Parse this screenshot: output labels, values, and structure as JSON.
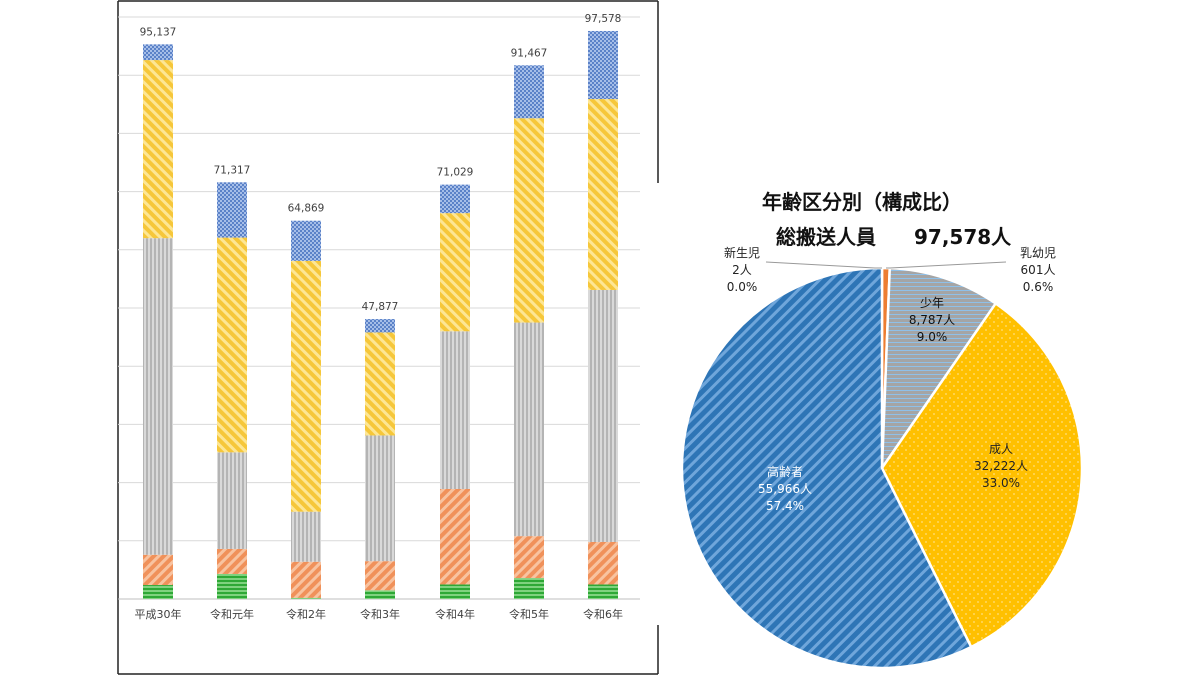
{
  "chart_data": [
    {
      "type": "bar",
      "stacked": true,
      "categories": [
        "平成30年",
        "令和元年",
        "令和2年",
        "令和3年",
        "令和4年",
        "令和5年",
        "令和6年"
      ],
      "totals": [
        "95,137",
        "71,317",
        "64,869",
        "47,877",
        "71,029",
        "91,467",
        "97,578"
      ],
      "series": [
        {
          "key": "s1",
          "color": "#2EA836",
          "pattern": "horizontal-lines",
          "values": [
            2400,
            4300,
            200,
            1500,
            2500,
            3600,
            2500
          ]
        },
        {
          "key": "s2",
          "color": "#F0915A",
          "pattern": "diagonal-hatch",
          "values": [
            5200,
            4300,
            6200,
            5000,
            16400,
            7200,
            7300
          ]
        },
        {
          "key": "s3",
          "color": "#B4B4B4",
          "pattern": "vertical-lines",
          "values": [
            54400,
            16600,
            8600,
            21600,
            27100,
            36700,
            43300
          ]
        },
        {
          "key": "s4",
          "color": "#F6C73A",
          "pattern": "diagonal-hatch",
          "values": [
            30600,
            36900,
            43100,
            17700,
            20300,
            35100,
            32800
          ]
        },
        {
          "key": "s5",
          "color": "#6F93D2",
          "pattern": "grid",
          "values": [
            2700,
            9500,
            6900,
            2300,
            4900,
            9100,
            11700
          ]
        }
      ],
      "ylim": [
        0,
        100000
      ],
      "gridlines": true
    },
    {
      "type": "pie",
      "title": "年齢区分別（構成比）",
      "subtitle_label": "総搬送人員",
      "subtitle_value": "97,578人",
      "slices": [
        {
          "key": "newborn",
          "name": "新生児",
          "value": 2,
          "value_text": "2人",
          "pct": "0.0%",
          "color": "#A5A5A5"
        },
        {
          "key": "infant",
          "name": "乳幼児",
          "value": 601,
          "value_text": "601人",
          "pct": "0.6%",
          "color": "#ED7D31"
        },
        {
          "key": "youth",
          "name": "少年",
          "value": 8787,
          "value_text": "8,787人",
          "pct": "9.0%",
          "color": "#A5A5A5"
        },
        {
          "key": "adult",
          "name": "成人",
          "value": 32222,
          "value_text": "32,222人",
          "pct": "33.0%",
          "color": "#FFC000"
        },
        {
          "key": "elderly",
          "name": "高齢者",
          "value": 55966,
          "value_text": "55,966人",
          "pct": "57.4%",
          "color": "#2E75B6"
        }
      ]
    }
  ]
}
